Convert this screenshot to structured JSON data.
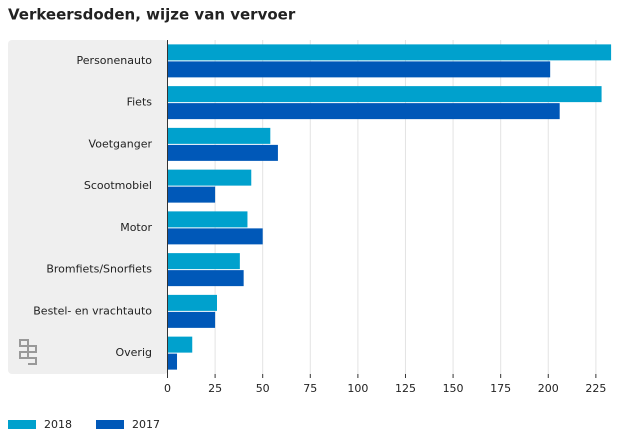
{
  "chart_data": {
    "type": "hbar",
    "title": "Verkeersdoden, wijze van vervoer",
    "categories": [
      "Personenauto",
      "Fiets",
      "Voetganger",
      "Scootmobiel",
      "Motor",
      "Bromfiets/Snorfiets",
      "Bestel- en vrachtauto",
      "Overig"
    ],
    "series": [
      {
        "name": "2018",
        "color": "#00a1cd",
        "values": [
          233,
          228,
          54,
          44,
          42,
          38,
          26,
          13
        ]
      },
      {
        "name": "2017",
        "color": "#0058b8",
        "values": [
          201,
          206,
          58,
          25,
          50,
          40,
          25,
          5
        ]
      }
    ],
    "xlim": [
      0,
      234
    ],
    "xticks": [
      0,
      25,
      50,
      75,
      100,
      125,
      150,
      175,
      200,
      225
    ],
    "grid": true
  }
}
